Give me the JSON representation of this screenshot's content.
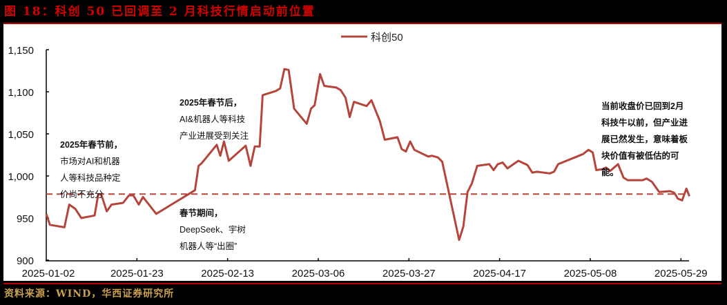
{
  "header": {
    "title": "图 18：科创 50 已回调至 2 月科技行情启动前位置"
  },
  "footer": {
    "source": "资料来源：WIND，华西证券研究所"
  },
  "legend": {
    "series_label": "科创50",
    "line_color": "#b5443a"
  },
  "annotations": {
    "pre_festival": {
      "title": "2025年春节前，",
      "lines": [
        "市场对AI和机器",
        "人等科技品种定",
        "价尚不充分"
      ]
    },
    "post_festival": {
      "title": "2025年春节后，",
      "lines": [
        "AI&机器人等科技",
        "产业进展受到关注"
      ]
    },
    "during_festival": {
      "title": "春节期间，",
      "lines": [
        "DeepSeek、宇树",
        "机器人等“出圈”"
      ]
    },
    "current": {
      "lines": [
        "当前收盘价已回到2月",
        "科技牛以前，但产业进",
        "展已然发生，意味着板",
        "块价值有被低估的可",
        "能。"
      ]
    }
  },
  "chart_data": {
    "type": "line",
    "title": "科创 50 已回调至 2 月科技行情启动前位置",
    "xlabel": "",
    "ylabel": "",
    "ylim": [
      900,
      1150
    ],
    "yticks": [
      900,
      950,
      1000,
      1050,
      1100,
      1150
    ],
    "ytick_labels": [
      "900",
      "950",
      "1,000",
      "1,050",
      "1,100",
      "1,150"
    ],
    "xtick_labels": [
      "2025-01-02",
      "2025-01-23",
      "2025-02-13",
      "2025-03-06",
      "2025-03-27",
      "2025-04-17",
      "2025-05-08",
      "2025-05-29"
    ],
    "grid": false,
    "legend_position": "top-center",
    "reference_line": {
      "value": 978.5,
      "style": "dashed",
      "color": "#b5443a"
    },
    "series": [
      {
        "name": "科创50",
        "color": "#b5443a",
        "points": [
          [
            0.0,
            955
          ],
          [
            0.6,
            942
          ],
          [
            3.0,
            939
          ],
          [
            3.8,
            966
          ],
          [
            4.8,
            961
          ],
          [
            5.8,
            950
          ],
          [
            8.0,
            953
          ],
          [
            8.6,
            978
          ],
          [
            9.1,
            978
          ],
          [
            10.0,
            958
          ],
          [
            10.8,
            966
          ],
          [
            12.7,
            968
          ],
          [
            13.7,
            977
          ],
          [
            14.4,
            977
          ],
          [
            15.3,
            966
          ],
          [
            16.0,
            975
          ],
          [
            18.2,
            955
          ],
          [
            24.6,
            983
          ],
          [
            25.2,
            1012
          ],
          [
            25.7,
            1015
          ],
          [
            28.2,
            1037
          ],
          [
            28.8,
            1024
          ],
          [
            29.4,
            1041
          ],
          [
            30.2,
            1018
          ],
          [
            33.0,
            1036
          ],
          [
            33.8,
            1012
          ],
          [
            34.5,
            1035
          ],
          [
            35.3,
            1035
          ],
          [
            35.8,
            1096
          ],
          [
            38.0,
            1101
          ],
          [
            38.7,
            1104
          ],
          [
            39.4,
            1127
          ],
          [
            40.1,
            1126
          ],
          [
            41.0,
            1080
          ],
          [
            43.1,
            1062
          ],
          [
            43.8,
            1080
          ],
          [
            44.4,
            1084
          ],
          [
            45.3,
            1121
          ],
          [
            46.0,
            1107
          ],
          [
            48.0,
            1105
          ],
          [
            48.7,
            1102
          ],
          [
            49.5,
            1093
          ],
          [
            50.2,
            1070
          ],
          [
            50.9,
            1088
          ],
          [
            53.0,
            1083
          ],
          [
            53.8,
            1090
          ],
          [
            55.2,
            1065
          ],
          [
            56.0,
            1043
          ],
          [
            58.1,
            1046
          ],
          [
            58.8,
            1032
          ],
          [
            59.5,
            1029
          ],
          [
            60.2,
            1041
          ],
          [
            60.9,
            1031
          ],
          [
            63.2,
            1023
          ],
          [
            63.8,
            1024
          ],
          [
            64.8,
            1022
          ],
          [
            65.5,
            1017
          ],
          [
            68.3,
            924
          ],
          [
            69.0,
            940
          ],
          [
            69.7,
            981
          ],
          [
            70.4,
            991
          ],
          [
            71.3,
            1012
          ],
          [
            73.3,
            1014
          ],
          [
            74.0,
            1007
          ],
          [
            74.7,
            1014
          ],
          [
            75.5,
            1016
          ],
          [
            76.3,
            1009
          ],
          [
            78.1,
            1018
          ],
          [
            79.6,
            1013
          ],
          [
            80.4,
            1004
          ],
          [
            81.2,
            1005
          ],
          [
            83.3,
            1003
          ],
          [
            84.0,
            1005
          ],
          [
            84.7,
            1014
          ],
          [
            88.8,
            1026
          ],
          [
            89.7,
            1031
          ],
          [
            90.4,
            1028
          ],
          [
            91.0,
            1007
          ],
          [
            92.1,
            1008
          ],
          [
            92.6,
            1010
          ],
          [
            93.3,
            1006
          ],
          [
            94.6,
            1014
          ],
          [
            95.5,
            998
          ],
          [
            96.2,
            995
          ],
          [
            98.7,
            995
          ],
          [
            99.3,
            997
          ],
          [
            100.2,
            993
          ],
          [
            101.4,
            981
          ],
          [
            103.2,
            982
          ],
          [
            103.9,
            980
          ],
          [
            104.5,
            973
          ],
          [
            105.2,
            971
          ],
          [
            105.9,
            985
          ],
          [
            106.4,
            976
          ]
        ]
      }
    ]
  }
}
